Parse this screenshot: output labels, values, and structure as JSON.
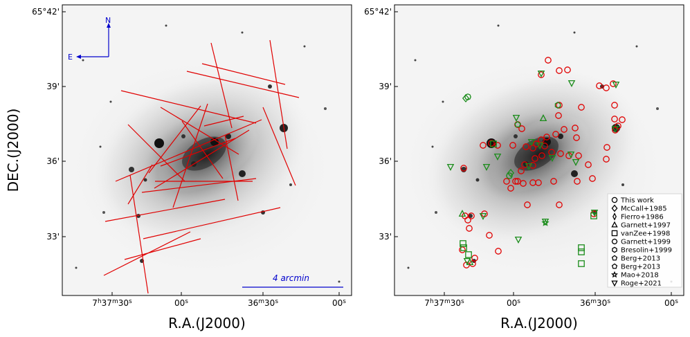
{
  "chart_data": [
    {
      "type": "image-plot",
      "panel": "left",
      "title": "",
      "xlabel": "R.A.(J2000)",
      "ylabel": "DEC.(J2000)",
      "x_ticks": [
        {
          "h": "7",
          "m": "37",
          "s": "30"
        },
        {
          "s": "00"
        },
        {
          "m": "36",
          "s": "30"
        },
        {
          "s": "00"
        }
      ],
      "y_ticks": [
        "65°42'",
        "39'",
        "36'",
        "33'"
      ],
      "compass": {
        "north": "N",
        "east": "E"
      },
      "scale_bar": "4 arcmin",
      "slit_color": "#e00000"
    },
    {
      "type": "image-plot",
      "panel": "right",
      "title": "",
      "xlabel": "R.A.(J2000)",
      "ylabel": "",
      "x_ticks": [
        {
          "h": "7",
          "m": "37",
          "s": "30"
        },
        {
          "s": "00"
        },
        {
          "m": "36",
          "s": "30"
        },
        {
          "s": "00"
        }
      ],
      "y_ticks": [
        "65°42'",
        "39'",
        "36'",
        "33'"
      ],
      "legend_position": "lower-right",
      "legend": [
        {
          "label": "This work",
          "marker": "circle"
        },
        {
          "label": "McCall+1985",
          "marker": "diamond"
        },
        {
          "label": "Fierro+1986",
          "marker": "thin-diamond"
        },
        {
          "label": "Garnett+1997",
          "marker": "triangle-up"
        },
        {
          "label": "vanZee+1998",
          "marker": "square"
        },
        {
          "label": "Garnett+1999",
          "marker": "octagon"
        },
        {
          "label": "Bresolin+1999",
          "marker": "hexagon"
        },
        {
          "label": "Berg+2013",
          "marker": "pentagon"
        },
        {
          "label": "Berg+2013",
          "marker": "pentagon"
        },
        {
          "label": "Mao+2018",
          "marker": "star"
        },
        {
          "label": "Roge+2021",
          "marker": "triangle-down"
        }
      ],
      "this_work_color": "#e00000",
      "literature_color": "#1a8c1a"
    }
  ]
}
